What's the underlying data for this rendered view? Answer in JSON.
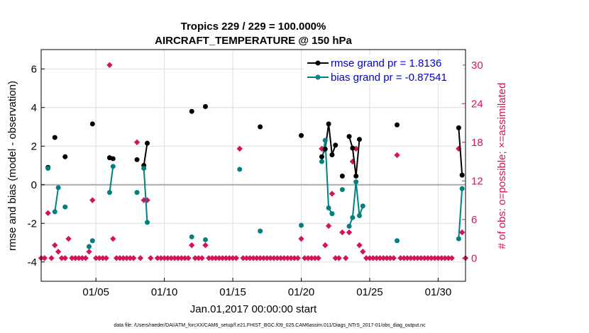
{
  "chart_data": {
    "type": "line",
    "title_line1": "Tropics 229 / 229 = 100.000%",
    "title_line2": "AIRCRAFT_TEMPERATURE @ 150 hPa",
    "xlabel": "Jan.01,2017 00:00:00 start",
    "ylabel_left": "rmse and bias (model - observation)",
    "ylabel_right": "# of obs: o=possible; ×=assimilated",
    "footer": "data file: /Users/raeder/DAI/ATM_forcXX/CAM6_setup/f.e21.FHIST_BGC.f09_025.CAM6assim.011/Diags_NTrS_2017-01/obs_diag_output.nc",
    "xlim": [
      1,
      32
    ],
    "ylim_left": [
      -5,
      7
    ],
    "ylim_right": [
      -3.6,
      32.4
    ],
    "x_ticks": [
      5,
      10,
      15,
      20,
      25,
      30
    ],
    "x_tick_labels": [
      "01/05",
      "01/10",
      "01/15",
      "01/20",
      "01/25",
      "01/30"
    ],
    "y_left_ticks": [
      -4,
      -2,
      0,
      2,
      4,
      6
    ],
    "y_left_tick_labels": [
      "-4",
      "-2",
      "0",
      "2",
      "4",
      "6"
    ],
    "y_right_ticks": [
      0,
      6,
      12,
      18,
      24,
      30
    ],
    "y_right_tick_labels": [
      "0",
      "6",
      "12",
      "18",
      "24",
      "30"
    ],
    "zero_line": 0,
    "colors": {
      "rmse": "#000000",
      "bias": "#008080",
      "obs": "#d4145a",
      "zero": "#aaaaaa",
      "grid": "#dddddd"
    },
    "legend": [
      {
        "name": "rmse grand pr = 1.8136",
        "color": "#0000cc",
        "line": "#000000"
      },
      {
        "name": "bias grand pr = -0.87541",
        "color": "#0000cc",
        "line": "#008080"
      }
    ],
    "series": [
      {
        "name": "rmse",
        "segments": [
          [
            [
              1.5,
              0.9
            ]
          ],
          [
            [
              2.0,
              2.45
            ]
          ],
          [
            [
              2.75,
              1.45
            ]
          ],
          [
            [
              4.75,
              3.15
            ]
          ],
          [
            [
              6.0,
              1.4
            ],
            [
              6.25,
              1.35
            ]
          ],
          [
            [
              8.0,
              1.3
            ]
          ],
          [
            [
              8.5,
              1.0
            ],
            [
              8.75,
              2.15
            ]
          ],
          [
            [
              12.0,
              3.8
            ]
          ],
          [
            [
              13.0,
              4.05
            ]
          ],
          [
            [
              17.0,
              3.0
            ]
          ],
          [
            [
              20.0,
              2.55
            ]
          ],
          [
            [
              21.5,
              1.45
            ],
            [
              21.75,
              1.85
            ],
            [
              22.0,
              3.15
            ],
            [
              22.25,
              1.55
            ],
            [
              22.5,
              2.05
            ]
          ],
          [
            [
              23.0,
              0.45
            ]
          ],
          [
            [
              23.5,
              2.5
            ],
            [
              23.75,
              1.9
            ],
            [
              24.0,
              0.45
            ],
            [
              24.25,
              2.35
            ]
          ],
          [
            [
              27.0,
              3.1
            ]
          ],
          [
            [
              31.5,
              2.95
            ],
            [
              31.75,
              0.5
            ]
          ]
        ]
      },
      {
        "name": "bias",
        "segments": [
          [
            [
              1.5,
              0.85
            ]
          ],
          [
            [
              2.0,
              -1.4
            ],
            [
              2.25,
              -0.15
            ]
          ],
          [
            [
              2.75,
              -1.15
            ]
          ],
          [
            [
              4.5,
              -3.2
            ]
          ],
          [
            [
              4.75,
              -2.9
            ]
          ],
          [
            [
              6.0,
              -0.4
            ],
            [
              6.25,
              0.95
            ]
          ],
          [
            [
              8.0,
              -0.4
            ]
          ],
          [
            [
              8.5,
              0.85
            ],
            [
              8.75,
              -1.95
            ]
          ],
          [
            [
              12.0,
              -2.7
            ]
          ],
          [
            [
              13.0,
              -2.85
            ]
          ],
          [
            [
              15.5,
              0.8
            ]
          ],
          [
            [
              17.0,
              -2.4
            ]
          ],
          [
            [
              20.0,
              -2.1
            ]
          ],
          [
            [
              21.5,
              1.2
            ],
            [
              21.75,
              2.3
            ],
            [
              22.0,
              -1.2
            ],
            [
              22.25,
              -1.5
            ]
          ],
          [
            [
              23.0,
              -0.25
            ]
          ],
          [
            [
              23.5,
              -2.15
            ],
            [
              23.75,
              -1.7
            ],
            [
              24.0,
              0.15
            ],
            [
              24.25,
              -1.6
            ],
            [
              24.5,
              -1.1
            ]
          ],
          [
            [
              27.0,
              -2.9
            ]
          ],
          [
            [
              31.5,
              -2.8
            ],
            [
              31.75,
              -0.2
            ]
          ]
        ]
      }
    ],
    "obs_possible": [
      [
        1,
        0
      ],
      [
        1.25,
        0
      ],
      [
        1.5,
        7
      ],
      [
        1.75,
        0
      ],
      [
        2,
        2
      ],
      [
        2.25,
        1
      ],
      [
        2.5,
        0
      ],
      [
        2.75,
        0
      ],
      [
        3,
        3
      ],
      [
        3.25,
        0
      ],
      [
        3.5,
        0
      ],
      [
        3.75,
        0
      ],
      [
        4,
        0
      ],
      [
        4.25,
        0
      ],
      [
        4.5,
        1
      ],
      [
        4.75,
        9
      ],
      [
        5,
        0
      ],
      [
        5.25,
        0
      ],
      [
        5.5,
        0
      ],
      [
        5.75,
        0
      ],
      [
        6,
        30
      ],
      [
        6.25,
        3
      ],
      [
        6.5,
        0
      ],
      [
        6.75,
        0
      ],
      [
        7,
        0
      ],
      [
        7.25,
        0
      ],
      [
        7.5,
        0
      ],
      [
        7.75,
        0
      ],
      [
        8,
        18
      ],
      [
        8.25,
        0
      ],
      [
        8.5,
        9
      ],
      [
        8.75,
        9
      ],
      [
        9,
        0
      ],
      [
        9.5,
        0
      ],
      [
        9.75,
        0
      ],
      [
        10,
        0
      ],
      [
        10.25,
        0
      ],
      [
        10.5,
        0
      ],
      [
        10.75,
        0
      ],
      [
        11,
        0
      ],
      [
        11.25,
        0
      ],
      [
        11.5,
        0
      ],
      [
        11.75,
        0
      ],
      [
        12,
        2
      ],
      [
        12.25,
        0
      ],
      [
        12.5,
        0
      ],
      [
        12.75,
        0
      ],
      [
        13,
        2
      ],
      [
        13.25,
        0
      ],
      [
        13.5,
        0
      ],
      [
        13.75,
        0
      ],
      [
        14,
        0
      ],
      [
        14.25,
        0
      ],
      [
        14.5,
        0
      ],
      [
        14.75,
        0
      ],
      [
        15,
        0
      ],
      [
        15.25,
        0
      ],
      [
        15.5,
        17
      ],
      [
        15.75,
        0
      ],
      [
        16,
        0
      ],
      [
        16.25,
        0
      ],
      [
        16.5,
        0
      ],
      [
        16.75,
        0
      ],
      [
        17,
        0
      ],
      [
        17.25,
        0
      ],
      [
        17.5,
        0
      ],
      [
        17.75,
        0
      ],
      [
        18,
        0
      ],
      [
        18.25,
        0
      ],
      [
        18.5,
        0
      ],
      [
        18.75,
        0
      ],
      [
        19,
        0
      ],
      [
        19.25,
        0
      ],
      [
        19.5,
        0
      ],
      [
        19.75,
        0
      ],
      [
        20,
        3
      ],
      [
        20.25,
        0
      ],
      [
        20.5,
        0
      ],
      [
        20.75,
        0
      ],
      [
        21,
        0
      ],
      [
        21.25,
        0
      ],
      [
        21.5,
        17
      ],
      [
        21.75,
        2
      ],
      [
        22,
        5
      ],
      [
        22.25,
        10
      ],
      [
        22.5,
        0
      ],
      [
        22.75,
        0
      ],
      [
        23,
        4
      ],
      [
        23.25,
        0
      ],
      [
        23.5,
        4
      ],
      [
        23.75,
        15
      ],
      [
        24,
        17
      ],
      [
        24.25,
        2
      ],
      [
        24.5,
        1
      ],
      [
        24.75,
        0
      ],
      [
        25,
        0
      ],
      [
        25.25,
        0
      ],
      [
        25.5,
        0
      ],
      [
        25.75,
        0
      ],
      [
        26,
        0
      ],
      [
        26.25,
        0
      ],
      [
        26.5,
        0
      ],
      [
        26.75,
        0
      ],
      [
        27,
        16
      ],
      [
        27.25,
        0
      ],
      [
        27.5,
        0
      ],
      [
        27.75,
        0
      ],
      [
        28,
        0
      ],
      [
        28.25,
        0
      ],
      [
        28.5,
        0
      ],
      [
        28.75,
        0
      ],
      [
        29,
        0
      ],
      [
        29.25,
        0
      ],
      [
        29.5,
        0
      ],
      [
        29.75,
        0
      ],
      [
        30,
        0
      ],
      [
        30.25,
        0
      ],
      [
        30.5,
        0
      ],
      [
        30.75,
        0
      ],
      [
        31,
        0
      ],
      [
        31.5,
        17
      ],
      [
        31.75,
        4
      ],
      [
        32,
        0
      ]
    ]
  }
}
